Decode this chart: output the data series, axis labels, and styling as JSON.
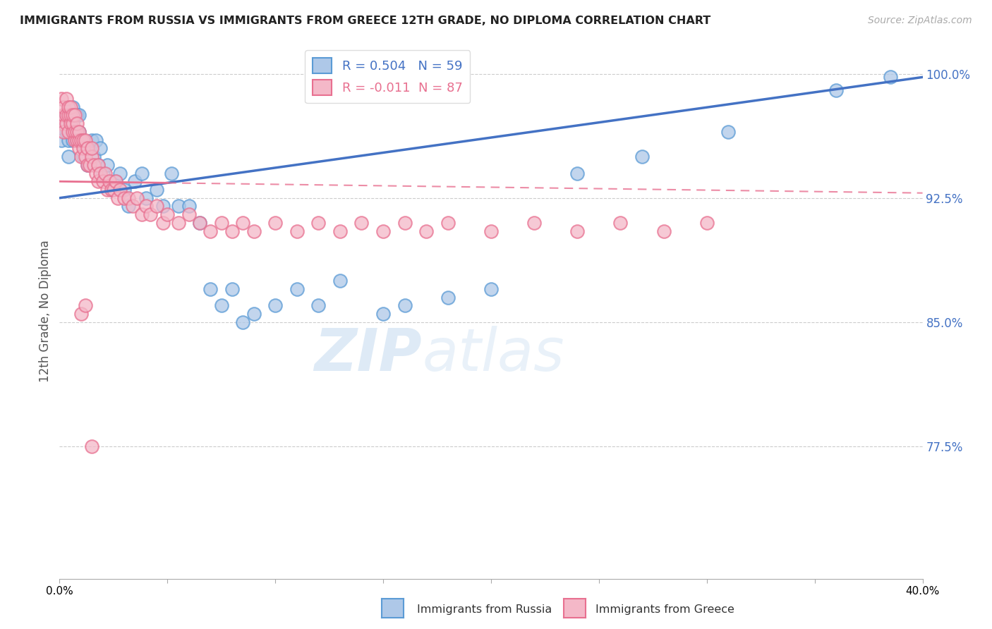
{
  "title": "IMMIGRANTS FROM RUSSIA VS IMMIGRANTS FROM GREECE 12TH GRADE, NO DIPLOMA CORRELATION CHART",
  "source": "Source: ZipAtlas.com",
  "ylabel": "12th Grade, No Diploma",
  "xmin": 0.0,
  "xmax": 0.4,
  "ymin": 0.695,
  "ymax": 1.018,
  "yticks": [
    0.775,
    0.85,
    0.925,
    1.0
  ],
  "ytick_labels": [
    "77.5%",
    "85.0%",
    "92.5%",
    "100.0%"
  ],
  "xticks": [
    0.0,
    0.05,
    0.1,
    0.15,
    0.2,
    0.25,
    0.3,
    0.35,
    0.4
  ],
  "xtick_labels": [
    "0.0%",
    "",
    "",
    "",
    "",
    "",
    "",
    "",
    "40.0%"
  ],
  "legend_russia": "Immigrants from Russia",
  "legend_greece": "Immigrants from Greece",
  "r_russia": 0.504,
  "n_russia": 59,
  "r_greece": -0.011,
  "n_greece": 87,
  "russia_color": "#aec8e8",
  "greece_color": "#f4b8c8",
  "russia_edge_color": "#5b9bd5",
  "greece_edge_color": "#e87090",
  "russia_line_color": "#4472c4",
  "greece_line_color": "#e87090",
  "watermark_zip": "ZIP",
  "watermark_atlas": "atlas",
  "russia_x": [
    0.001,
    0.002,
    0.003,
    0.003,
    0.004,
    0.004,
    0.005,
    0.005,
    0.006,
    0.006,
    0.007,
    0.008,
    0.008,
    0.009,
    0.009,
    0.01,
    0.011,
    0.012,
    0.013,
    0.014,
    0.015,
    0.016,
    0.017,
    0.018,
    0.019,
    0.02,
    0.022,
    0.024,
    0.026,
    0.028,
    0.03,
    0.032,
    0.035,
    0.038,
    0.04,
    0.045,
    0.048,
    0.052,
    0.055,
    0.06,
    0.065,
    0.07,
    0.075,
    0.08,
    0.085,
    0.09,
    0.1,
    0.11,
    0.12,
    0.13,
    0.15,
    0.16,
    0.18,
    0.2,
    0.24,
    0.27,
    0.31,
    0.36,
    0.385
  ],
  "russia_y": [
    0.96,
    0.97,
    0.975,
    0.965,
    0.96,
    0.95,
    0.97,
    0.965,
    0.98,
    0.96,
    0.965,
    0.975,
    0.96,
    0.965,
    0.975,
    0.96,
    0.95,
    0.955,
    0.945,
    0.955,
    0.96,
    0.95,
    0.96,
    0.945,
    0.955,
    0.94,
    0.945,
    0.93,
    0.935,
    0.94,
    0.93,
    0.92,
    0.935,
    0.94,
    0.925,
    0.93,
    0.92,
    0.94,
    0.92,
    0.92,
    0.91,
    0.87,
    0.86,
    0.87,
    0.85,
    0.855,
    0.86,
    0.87,
    0.86,
    0.875,
    0.855,
    0.86,
    0.865,
    0.87,
    0.94,
    0.95,
    0.965,
    0.99,
    0.998
  ],
  "greece_x": [
    0.001,
    0.001,
    0.002,
    0.002,
    0.002,
    0.003,
    0.003,
    0.003,
    0.004,
    0.004,
    0.004,
    0.005,
    0.005,
    0.005,
    0.006,
    0.006,
    0.006,
    0.007,
    0.007,
    0.007,
    0.008,
    0.008,
    0.008,
    0.009,
    0.009,
    0.009,
    0.01,
    0.01,
    0.011,
    0.011,
    0.012,
    0.012,
    0.013,
    0.013,
    0.014,
    0.015,
    0.015,
    0.016,
    0.017,
    0.018,
    0.018,
    0.019,
    0.02,
    0.021,
    0.022,
    0.023,
    0.024,
    0.025,
    0.026,
    0.027,
    0.028,
    0.03,
    0.032,
    0.034,
    0.036,
    0.038,
    0.04,
    0.042,
    0.045,
    0.048,
    0.05,
    0.055,
    0.06,
    0.065,
    0.07,
    0.075,
    0.08,
    0.085,
    0.09,
    0.1,
    0.11,
    0.12,
    0.13,
    0.14,
    0.15,
    0.16,
    0.17,
    0.18,
    0.2,
    0.22,
    0.24,
    0.26,
    0.28,
    0.3,
    0.01,
    0.012,
    0.015
  ],
  "greece_y": [
    0.97,
    0.985,
    0.975,
    0.965,
    0.98,
    0.97,
    0.975,
    0.985,
    0.965,
    0.975,
    0.98,
    0.97,
    0.975,
    0.98,
    0.965,
    0.97,
    0.975,
    0.96,
    0.965,
    0.975,
    0.96,
    0.965,
    0.97,
    0.955,
    0.96,
    0.965,
    0.95,
    0.96,
    0.955,
    0.96,
    0.95,
    0.96,
    0.945,
    0.955,
    0.945,
    0.95,
    0.955,
    0.945,
    0.94,
    0.945,
    0.935,
    0.94,
    0.935,
    0.94,
    0.93,
    0.935,
    0.93,
    0.93,
    0.935,
    0.925,
    0.93,
    0.925,
    0.925,
    0.92,
    0.925,
    0.915,
    0.92,
    0.915,
    0.92,
    0.91,
    0.915,
    0.91,
    0.915,
    0.91,
    0.905,
    0.91,
    0.905,
    0.91,
    0.905,
    0.91,
    0.905,
    0.91,
    0.905,
    0.91,
    0.905,
    0.91,
    0.905,
    0.91,
    0.905,
    0.91,
    0.905,
    0.91,
    0.905,
    0.91,
    0.855,
    0.86,
    0.775
  ]
}
